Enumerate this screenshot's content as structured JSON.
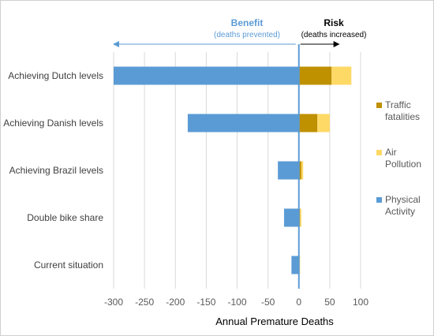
{
  "chart_data": {
    "type": "bar",
    "orientation": "horizontal",
    "stacked": true,
    "categories": [
      "Achieving Dutch levels",
      "Achieving Danish levels",
      "Achieving Brazil levels",
      "Double bike share",
      "Current situation"
    ],
    "series": [
      {
        "name": "Physical Activity",
        "color": "#5b9bd5",
        "values": [
          -300,
          -180,
          -34,
          -24,
          -12
        ]
      },
      {
        "name": "Traffic fatalities",
        "color": "#bf9000",
        "values": [
          53,
          30,
          4,
          2,
          1
        ]
      },
      {
        "name": "Air Pollution",
        "color": "#ffd966",
        "values": [
          32,
          20,
          3,
          2,
          1
        ]
      }
    ],
    "legend_order": [
      "Traffic fatalities",
      "Air Pollution",
      "Physical Activity"
    ],
    "legend_lines": {
      "Traffic fatalities": [
        "Traffic",
        "fatalities"
      ],
      "Air Pollution": [
        "Air",
        "Pollution"
      ],
      "Physical Activity": [
        "Physical",
        "Activity"
      ]
    },
    "xlim": [
      -300,
      100
    ],
    "xticks": [
      -300,
      -250,
      -200,
      -150,
      -100,
      -50,
      0,
      50,
      100
    ],
    "xlabel": "Annual Premature Deaths",
    "grid": "vertical",
    "legend_position": "right",
    "annotations": {
      "benefit": {
        "title": "Benefit",
        "subtitle": "(deaths prevented)",
        "color": "#5b9bd5"
      },
      "risk": {
        "title": "Risk",
        "subtitle": "(deaths increased)",
        "color": "#000000"
      }
    },
    "zero_line_color": "#5b9bd5"
  }
}
